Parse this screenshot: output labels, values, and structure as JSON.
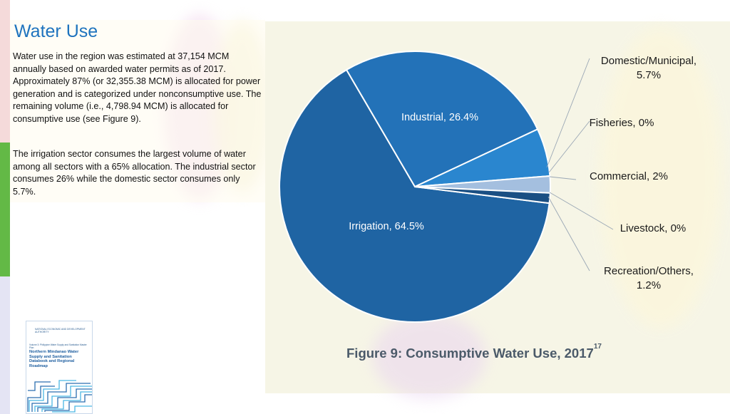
{
  "section": {
    "heading": "Water Use",
    "paragraph_1": "Water use in the region was estimated at 37,154 MCM annually based on awarded water permits as of 2017. Approximately 87% (or 32,355.38 MCM) is allocated for power generation and is categorized under nonconsumptive use. The remaining volume (i.e., 4,798.94 MCM) is allocated for consumptive use (see Figure 9).",
    "paragraph_2": "The irrigation sector consumes the largest volume of water among all sectors with a 65% allocation. The industrial sector consumes 26% while the domestic sector consumes only 5.7%."
  },
  "figure": {
    "caption": "Figure 9: Consumptive Water Use, 2017",
    "footnote": "17"
  },
  "chart_data": {
    "type": "pie",
    "slices": [
      {
        "label": "Irrigation, 64.5%",
        "value": 64.5,
        "color": "#1f64a3",
        "label_inside": true
      },
      {
        "label": "Industrial, 26.4%",
        "value": 26.4,
        "color": "#2372b8",
        "label_inside": true
      },
      {
        "label": "Domestic/Municipal, 5.7%",
        "value": 5.7,
        "color": "#2a86cf",
        "label_inside": false
      },
      {
        "label": "Fisheries, 0%",
        "value": 0,
        "color": "#2a86cf",
        "label_inside": false
      },
      {
        "label": "Commercial, 2%",
        "value": 2,
        "color": "#a4bfdf",
        "label_inside": false
      },
      {
        "label": "Livestock, 0%",
        "value": 0,
        "color": "#1a4f83",
        "label_inside": false
      },
      {
        "label": "Recreation/Others, 1.2%",
        "value": 1.2,
        "color": "#1a4f83",
        "label_inside": false
      }
    ],
    "outside_labels": [
      {
        "lines": [
          "Domestic/Municipal,",
          "5.7%"
        ]
      },
      {
        "lines": [
          "Fisheries, 0%"
        ]
      },
      {
        "lines": [
          "Commercial,  2%"
        ]
      },
      {
        "lines": [
          "Livestock, 0%"
        ]
      },
      {
        "lines": [
          "Recreation/Others,",
          "1.2%"
        ]
      }
    ]
  },
  "thumbnail": {
    "header": "NATIONAL ECONOMIC AND DEVELOPMENT AUTHORITY",
    "series": "Volume 3: Philippine Water Supply and Sanitation Master Plan",
    "title": "Northern Mindanao Water Supply and Sanitation Databook and Regional Roadmap",
    "accent": "#1f5fa0"
  }
}
